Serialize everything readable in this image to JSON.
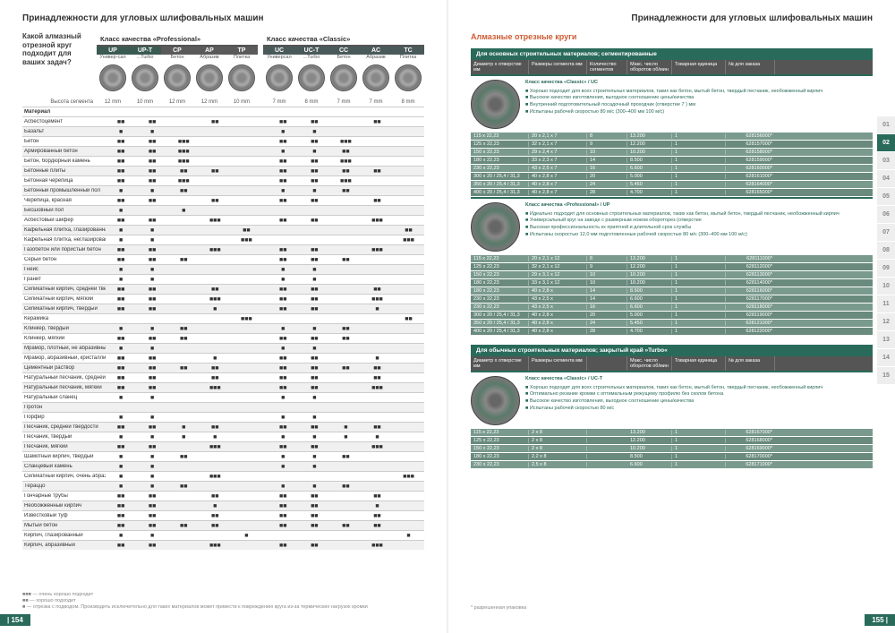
{
  "header_left": "Принадлежности для угловых шлифовальных машин",
  "header_right": "Принадлежности для угловых шлифовальных машин",
  "intro_text": "Какой алмазный отрезной круг подходит для ваших задач?",
  "class_prof": "Класс качества «Professional»",
  "class_classic": "Класс качества «Classic»",
  "cols": [
    {
      "code": "UP",
      "sub": "Универ-сал"
    },
    {
      "code": "UP-T",
      "sub": "...Turbo"
    },
    {
      "code": "CP",
      "sub": "Бетон"
    },
    {
      "code": "AP",
      "sub": "Абразив"
    },
    {
      "code": "TP",
      "sub": "Плитка"
    },
    {
      "code": "UC",
      "sub": "Универсал"
    },
    {
      "code": "UC-T",
      "sub": "...Turbo"
    },
    {
      "code": "CC",
      "sub": "Бетон"
    },
    {
      "code": "AC",
      "sub": "Абразив"
    },
    {
      "code": "TC",
      "sub": "Плитка"
    }
  ],
  "size_label": "Высота сегмента",
  "sizes": [
    "12 mm",
    "10 mm",
    "12 mm",
    "12 mm",
    "10 mm",
    "7 mm",
    "8 mm",
    "7 mm",
    "7 mm",
    "8 mm"
  ],
  "material_header": "Материал",
  "materials": [
    {
      "n": "Асбестоцемент",
      "v": [
        "■■",
        "■■",
        "",
        "■■",
        "",
        "■■",
        "■■",
        "",
        "■■",
        ""
      ]
    },
    {
      "n": "Базальт",
      "v": [
        "■",
        "■",
        "",
        "",
        "",
        "■",
        "■",
        "",
        "",
        ""
      ]
    },
    {
      "n": "Бетон",
      "v": [
        "■■",
        "■■",
        "■■■",
        "",
        "",
        "■■",
        "■■",
        "■■■",
        "",
        ""
      ]
    },
    {
      "n": "Армированный бетон",
      "v": [
        "■■",
        "■■",
        "■■■",
        "",
        "",
        "■",
        "■",
        "■■",
        "",
        ""
      ]
    },
    {
      "n": "Бетон, бордюрный камень",
      "v": [
        "■■",
        "■■",
        "■■■",
        "",
        "",
        "■■",
        "■■",
        "■■■",
        "",
        ""
      ]
    },
    {
      "n": "Бетонные плиты",
      "v": [
        "■■",
        "■■",
        "■■",
        "■■",
        "",
        "■■",
        "■■",
        "■■",
        "■■",
        ""
      ]
    },
    {
      "n": "Бетонная черепица",
      "v": [
        "■■",
        "■■",
        "■■■",
        "",
        "",
        "■■",
        "■■",
        "■■■",
        "",
        ""
      ]
    },
    {
      "n": "Бетонный промышленный пол",
      "v": [
        "■",
        "■",
        "■■",
        "",
        "",
        "■",
        "■",
        "■■",
        "",
        ""
      ]
    },
    {
      "n": "Черепица, красная",
      "v": [
        "■■",
        "■■",
        "",
        "■■",
        "",
        "■■",
        "■■",
        "",
        "■■",
        ""
      ]
    },
    {
      "n": "Бесшовный пол",
      "v": [
        "■",
        "",
        "■",
        "",
        "",
        "",
        "",
        "",
        "",
        ""
      ]
    },
    {
      "n": "Асбестовый шифер",
      "v": [
        "■■",
        "■■",
        "",
        "■■■",
        "",
        "■■",
        "■■",
        "",
        "■■■",
        ""
      ]
    },
    {
      "n": "Кафельная плитка, глазированная",
      "v": [
        "■",
        "■",
        "",
        "",
        "■■",
        "",
        "",
        "",
        "",
        "■■"
      ]
    },
    {
      "n": "Кафельная плитка, неглазированная",
      "v": [
        "■",
        "■",
        "",
        "",
        "■■■",
        "",
        "",
        "",
        "",
        "■■■"
      ]
    },
    {
      "n": "Газобетон или пористый бетон",
      "v": [
        "■■",
        "■■",
        "",
        "■■■",
        "",
        "■■",
        "■■",
        "",
        "■■■",
        ""
      ]
    },
    {
      "n": "Серый бетон",
      "v": [
        "■■",
        "■■",
        "■■",
        "",
        "",
        "■■",
        "■■",
        "■■",
        "",
        ""
      ]
    },
    {
      "n": "Гнейс",
      "v": [
        "■",
        "■",
        "",
        "",
        "",
        "■",
        "■",
        "",
        "",
        ""
      ]
    },
    {
      "n": "Гранит",
      "v": [
        "■",
        "■",
        "",
        "",
        "",
        "■",
        "■",
        "",
        "",
        ""
      ]
    },
    {
      "n": "Силикатный кирпич, средней твердости",
      "v": [
        "■■",
        "■■",
        "",
        "■■",
        "",
        "■■",
        "■■",
        "",
        "■■",
        ""
      ]
    },
    {
      "n": "Силикатный кирпич, мягкий",
      "v": [
        "■■",
        "■■",
        "",
        "■■■",
        "",
        "■■",
        "■■",
        "",
        "■■■",
        ""
      ]
    },
    {
      "n": "Силикатный кирпич, твердый",
      "v": [
        "■■",
        "■■",
        "",
        "■",
        "",
        "■■",
        "■■",
        "",
        "■",
        ""
      ]
    },
    {
      "n": "Керамика",
      "v": [
        "",
        "",
        "",
        "",
        "■■■",
        "",
        "",
        "",
        "",
        "■■"
      ]
    },
    {
      "n": "Клинкер, твердый",
      "v": [
        "■",
        "■",
        "■■",
        "",
        "",
        "■",
        "■",
        "■■",
        "",
        ""
      ]
    },
    {
      "n": "Клинкер, мягкий",
      "v": [
        "■■",
        "■■",
        "■■",
        "",
        "",
        "■■",
        "■■",
        "■■",
        "",
        ""
      ]
    },
    {
      "n": "Мрамор, плотный, не абразивный",
      "v": [
        "■",
        "■",
        "",
        "",
        "",
        "■",
        "■",
        "",
        "",
        ""
      ]
    },
    {
      "n": "Мрамор, абразивный, кристаллический",
      "v": [
        "■■",
        "■■",
        "",
        "■",
        "",
        "■■",
        "■■",
        "",
        "■",
        ""
      ]
    },
    {
      "n": "Цементный раствор",
      "v": [
        "■■",
        "■■",
        "■■",
        "■■",
        "",
        "■■",
        "■■",
        "■■",
        "■■",
        ""
      ]
    },
    {
      "n": "Натуральный песчаник, средней твердости",
      "v": [
        "■■",
        "■■",
        "",
        "■■",
        "",
        "■■",
        "■■",
        "",
        "■■",
        ""
      ]
    },
    {
      "n": "Натуральный песчаник, мягкий",
      "v": [
        "■■",
        "■■",
        "",
        "■■■",
        "",
        "■■",
        "■■",
        "",
        "■■■",
        ""
      ]
    },
    {
      "n": "Натуральный сланец",
      "v": [
        "■",
        "■",
        "",
        "",
        "",
        "■",
        "■",
        "",
        "",
        ""
      ]
    },
    {
      "n": "Протон",
      "v": [
        "",
        "",
        "",
        "",
        "",
        "",
        "",
        "",
        "",
        ""
      ]
    },
    {
      "n": "Порфир",
      "v": [
        "■",
        "■",
        "",
        "",
        "",
        "■",
        "■",
        "",
        "",
        ""
      ]
    },
    {
      "n": "Песчаник, средней твердости",
      "v": [
        "■■",
        "■■",
        "■",
        "■■",
        "",
        "■■",
        "■■",
        "■",
        "■■",
        ""
      ]
    },
    {
      "n": "Песчаник, твердый",
      "v": [
        "■",
        "■",
        "■",
        "■",
        "",
        "■",
        "■",
        "■",
        "■",
        ""
      ]
    },
    {
      "n": "Песчаник, мягкий",
      "v": [
        "■■",
        "■■",
        "",
        "■■■",
        "",
        "■■",
        "■■",
        "",
        "■■■",
        ""
      ]
    },
    {
      "n": "Шамотный кирпич, твердый",
      "v": [
        "■",
        "■",
        "■■",
        "",
        "",
        "■",
        "■",
        "■■",
        "",
        ""
      ]
    },
    {
      "n": "Сланцевый камень",
      "v": [
        "■",
        "■",
        "",
        "",
        "",
        "■",
        "■",
        "",
        "",
        ""
      ]
    },
    {
      "n": "Силикатный кирпич, очень абразивный",
      "v": [
        "■",
        "■",
        "",
        "■■■",
        "",
        "",
        "",
        "",
        "",
        "■■■"
      ]
    },
    {
      "n": "Тераццо",
      "v": [
        "■",
        "■",
        "■■",
        "",
        "",
        "■",
        "■",
        "■■",
        "",
        ""
      ]
    },
    {
      "n": "Гончарные трубы",
      "v": [
        "■■",
        "■■",
        "",
        "■■",
        "",
        "■■",
        "■■",
        "",
        "■■",
        ""
      ]
    },
    {
      "n": "Необожженный кирпич",
      "v": [
        "■■",
        "■■",
        "",
        "■",
        "",
        "■■",
        "■■",
        "",
        "■",
        ""
      ]
    },
    {
      "n": "Известковый туф",
      "v": [
        "■■",
        "■■",
        "",
        "■■",
        "",
        "■■",
        "■■",
        "",
        "■■",
        ""
      ]
    },
    {
      "n": "Мытый бетон",
      "v": [
        "■■",
        "■■",
        "■■",
        "■■",
        "",
        "■■",
        "■■",
        "■■",
        "■■",
        ""
      ]
    },
    {
      "n": "Кирпич, глазированный",
      "v": [
        "■",
        "■",
        "",
        "",
        "■",
        "",
        "",
        "",
        "",
        "■"
      ]
    },
    {
      "n": "Кирпич, абразивный",
      "v": [
        "■■",
        "■■",
        "",
        "■■■",
        "",
        "■■",
        "■■",
        "",
        "■■■",
        ""
      ]
    }
  ],
  "legend1": "■■■ — очень хорошо подходит",
  "legend2": "■■ — хорошо подходит",
  "legend3": "■ — отрезка с подводом. Производить исключительно для таких материалов может привести к повреждению круга из-за термических нагрузок кромки",
  "page_left_num": "| 154",
  "page_right_num": "155 |",
  "right_title": "Алмазные отрезные круги",
  "sub1_header": "Для основных строительных материалов; сегментированные",
  "col_headers": [
    "Диаметр x отверстие мм",
    "Размеры сегмента мм",
    "Количество сегментов",
    "Макс. число оборотов об/мин",
    "Товарная единица",
    "№ для заказа"
  ],
  "product1_title": "Класс качества «Classic» / UC",
  "product1_bullets": [
    "Хорошо подходит для всех строительных материалов, таких как бетон, мытый бетон, твердый песчаник, необожженный кирпич",
    "Высокое качество изготовления, выгодное соотношение цены/качества",
    "Внутренний подготовительный посадочный проходчик (отверстие 7 ) мм",
    "Испытаны рабочей скоростью 80 м/с (300–400 мм 100 м/с)"
  ],
  "product1_rows": [
    [
      "115 x 22,23",
      "20 x 2,1 x 7",
      "8",
      "13.200",
      "1",
      "628156000*"
    ],
    [
      "125 x 22,23",
      "32 x 2,1 x 7",
      "9",
      "12.200",
      "1",
      "628157000*"
    ],
    [
      "150 x 22,23",
      "29 x 2,4 x 7",
      "10",
      "10.200",
      "1",
      "628158000*"
    ],
    [
      "180 x 22,23",
      "33 x 2,3 x 7",
      "14",
      "8.500",
      "1",
      "628159000*"
    ],
    [
      "230 x 22,23",
      "43 x 2,5 x 7",
      "16",
      "6.600",
      "1",
      "628160000*"
    ],
    [
      "300 x 20 / 25,4 / 31,3",
      "40 x 2,8 x 7",
      "20",
      "5.000",
      "1",
      "628161000*"
    ],
    [
      "350 x 20 / 25,4 / 31,3",
      "40 x 2,8 x 7",
      "24",
      "5.450",
      "1",
      "628164000*"
    ],
    [
      "400 x 20 / 25,4 / 31,3",
      "40 x 2,8 x 7",
      "28",
      "4.700",
      "1",
      "628165000*"
    ]
  ],
  "product2_title": "Класс качества «Professional» / UP",
  "product2_bullets": [
    "Идеально подходит для основных строительных материалов, таких как бетон, мытый бетон, твердый песчаник, необожженный кирпич",
    "Универсальный круг на заводе с размерным ножом обороторез (отверстие",
    "Высокая профессиональность кх приятной и длительной срок службы",
    "Испытаны скоростью 12,0 мм подготовленные рабочей скоростью 80 м/с (300–400 мм 100 м/с)"
  ],
  "product2_rows": [
    [
      "115 x 22,23",
      "20 x 2,1 x 12",
      "8",
      "13.200",
      "1",
      "628111000*"
    ],
    [
      "125 x 22,23",
      "32 x 2,1 x 12",
      "9",
      "12.200",
      "1",
      "628112000*"
    ],
    [
      "150 x 22,23",
      "29 x 3,1 x 12",
      "10",
      "10.200",
      "1",
      "628113000*"
    ],
    [
      "180 x 22,23",
      "33 x 3,1 x 12",
      "10",
      "10.200",
      "1",
      "628114000*"
    ],
    [
      "180 x 22,23",
      "40 x 2,8 x",
      "14",
      "8.500",
      "1",
      "628116000*"
    ],
    [
      "230 x 22,23",
      "43 x 2,5 x",
      "14",
      "6.600",
      "1",
      "628117000*"
    ],
    [
      "230 x 22,23",
      "43 x 2,5 x",
      "16",
      "6.600",
      "1",
      "628118000*"
    ],
    [
      "300 x 20 / 25,4 / 31,3",
      "40 x 2,8 x",
      "20",
      "5.000",
      "1",
      "628119000*"
    ],
    [
      "350 x 20 / 25,4 / 31,3",
      "40 x 2,8 x",
      "24",
      "5.450",
      "1",
      "628121000*"
    ],
    [
      "400 x 20 / 25,4 / 31,3",
      "40 x 2,8 x",
      "28",
      "4.700",
      "1",
      "628122000*"
    ]
  ],
  "sub2_header": "Для обычных строительных материалов; закрытый край »Turbo«",
  "col_headers2": [
    "Диаметр x отверстие мм",
    "Размеры сегмента мм",
    "",
    "Макс. число оборотов об/мин",
    "Товарная единица",
    "№ для заказа"
  ],
  "product3_title": "Класс качества «Classic» / UC-T",
  "product3_bullets": [
    "Хорошо подходит для всех строительных материалов, таких как бетон, мытый бетон, твердый песчаник, необожженный кирпич",
    "Оптимально резание кромки с оптимальным режущему профилю без сколов бетона",
    "Высокое качество изготовления, выгодное соотношение цены/качества",
    "Испытаны рабочей скоростью 80 м/с"
  ],
  "product3_rows": [
    [
      "115 x 22,23",
      "2 x 8",
      "",
      "13.200",
      "1",
      "628167000*"
    ],
    [
      "125 x 22,23",
      "2 x 8",
      "",
      "12.200",
      "1",
      "628168000*"
    ],
    [
      "150 x 22,23",
      "2 x 8",
      "",
      "10.200",
      "1",
      "628169000*"
    ],
    [
      "180 x 22,23",
      "2,2 x 8",
      "",
      "8.500",
      "1",
      "628170000*"
    ],
    [
      "230 x 22,23",
      "2,5 x 8",
      "",
      "6.600",
      "1",
      "628171000*"
    ]
  ],
  "footer_note": "* разрешенная упаковка",
  "tabs": [
    "01",
    "02",
    "03",
    "04",
    "05",
    "06",
    "07",
    "08",
    "09",
    "10",
    "11",
    "12",
    "13",
    "14",
    "15"
  ],
  "active_tab": "02"
}
